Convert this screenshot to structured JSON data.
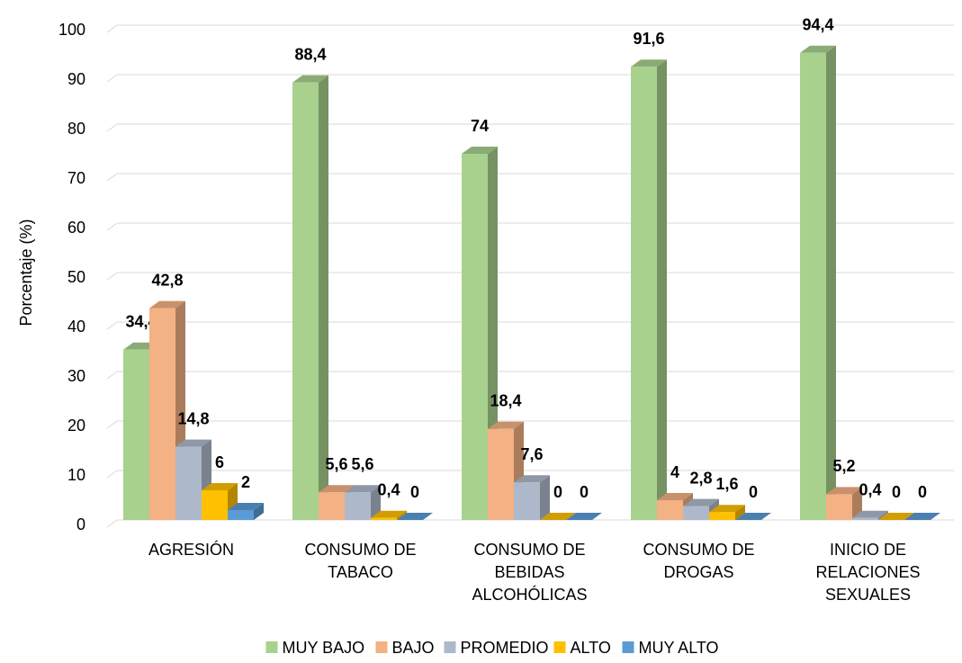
{
  "chart_data": {
    "type": "bar3d",
    "y_label": "Porcentaje (%)",
    "categories": [
      [
        "AGRESIÓN"
      ],
      [
        "CONSUMO DE",
        "TABACO"
      ],
      [
        "CONSUMO DE",
        "BEBIDAS",
        "ALCOHÓLICAS"
      ],
      [
        "CONSUMO DE",
        "DROGAS"
      ],
      [
        "INICIO DE",
        "RELACIONES",
        "SEXUALES"
      ]
    ],
    "series": [
      {
        "name": "MUY BAJO",
        "color": "#a9d18e",
        "values": [
          34.4,
          88.4,
          74,
          91.6,
          94.4
        ],
        "value_labels": [
          "34,4",
          "88,4",
          "74",
          "91,6",
          "94,4"
        ]
      },
      {
        "name": "BAJO",
        "color": "#f4b183",
        "values": [
          42.8,
          5.6,
          18.4,
          4,
          5.2
        ],
        "value_labels": [
          "42,8",
          "5,6",
          "18,4",
          "4",
          "5,2"
        ]
      },
      {
        "name": "PROMEDIO",
        "color": "#adb9ca",
        "values": [
          14.8,
          5.6,
          7.6,
          2.8,
          0.4
        ],
        "value_labels": [
          "14,8",
          "5,6",
          "7,6",
          "2,8",
          "0,4"
        ]
      },
      {
        "name": "ALTO",
        "color": "#ffc000",
        "values": [
          6,
          0.4,
          0,
          1.6,
          0
        ],
        "value_labels": [
          "6",
          "0,4",
          "0",
          "1,6",
          "0"
        ]
      },
      {
        "name": "MUY ALTO",
        "color": "#5b9bd5",
        "values": [
          2,
          0,
          0,
          0,
          0
        ],
        "value_labels": [
          "2",
          "0",
          "0",
          "0",
          "0"
        ]
      }
    ],
    "ylim": [
      0,
      100
    ],
    "yticks": [
      0,
      10,
      20,
      30,
      40,
      50,
      60,
      70,
      80,
      90,
      100
    ],
    "grid": true,
    "legend": "bottom"
  }
}
